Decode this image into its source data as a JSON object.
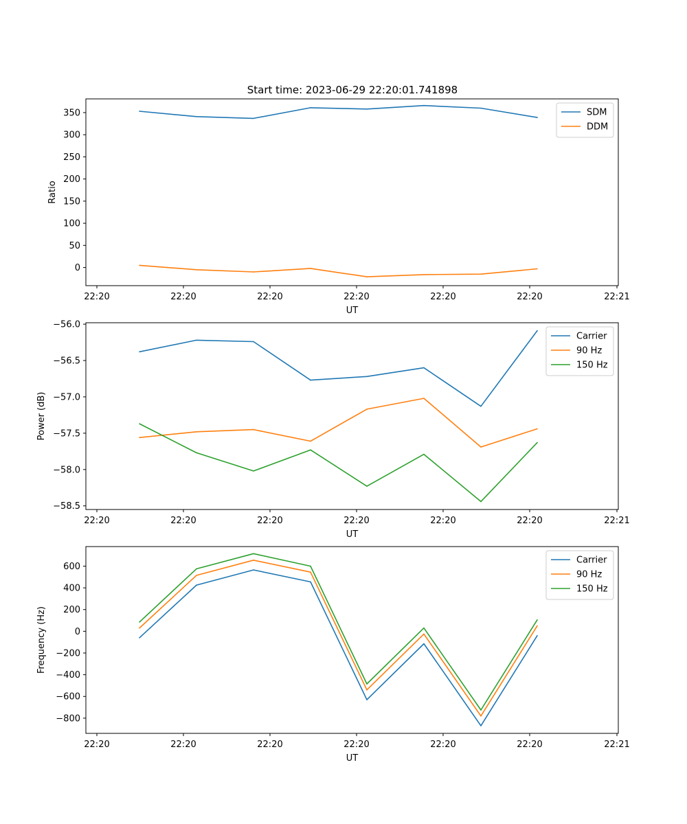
{
  "title": "Start time: 2023-06-29 22:20:01.741898",
  "chart_data": [
    {
      "type": "line",
      "xlabel": "UT",
      "ylabel": "Ratio",
      "x_tick_labels": [
        "22:20",
        "22:20",
        "22:20",
        "22:20",
        "22:20",
        "22:20",
        "22:21"
      ],
      "ylim": [
        -41,
        381
      ],
      "yticks": [
        0,
        50,
        100,
        150,
        200,
        250,
        300,
        350
      ],
      "legend_position": "upper right",
      "series": [
        {
          "name": "SDM",
          "color": "#1f77b4",
          "values": [
            353,
            341,
            337,
            361,
            358,
            366,
            360,
            339
          ]
        },
        {
          "name": "DDM",
          "color": "#ff7f0e",
          "values": [
            5,
            -5,
            -10,
            -2,
            -21,
            -16,
            -15,
            -3
          ]
        }
      ]
    },
    {
      "type": "line",
      "xlabel": "UT",
      "ylabel": "Power (dB)",
      "x_tick_labels": [
        "22:20",
        "22:20",
        "22:20",
        "22:20",
        "22:20",
        "22:20",
        "22:21"
      ],
      "ylim": [
        -58.55,
        -55.98
      ],
      "yticks": [
        -58.5,
        -58.0,
        -57.5,
        -57.0,
        -56.5,
        -56.0
      ],
      "legend_position": "upper right",
      "series": [
        {
          "name": "Carrier",
          "color": "#1f77b4",
          "values": [
            -56.38,
            -56.22,
            -56.24,
            -56.77,
            -56.72,
            -56.6,
            -57.13,
            -56.09
          ]
        },
        {
          "name": "90 Hz",
          "color": "#ff7f0e",
          "values": [
            -57.56,
            -57.48,
            -57.45,
            -57.61,
            -57.17,
            -57.02,
            -57.69,
            -57.44
          ]
        },
        {
          "name": "150 Hz",
          "color": "#2ca02c",
          "values": [
            -57.37,
            -57.77,
            -58.02,
            -57.73,
            -58.23,
            -57.79,
            -58.44,
            -57.63
          ]
        }
      ]
    },
    {
      "type": "line",
      "xlabel": "UT",
      "ylabel": "Frequency (Hz)",
      "x_tick_labels": [
        "22:20",
        "22:20",
        "22:20",
        "22:20",
        "22:20",
        "22:20",
        "22:21"
      ],
      "ylim": [
        -940,
        780
      ],
      "yticks": [
        -800,
        -600,
        -400,
        -200,
        0,
        200,
        400,
        600
      ],
      "legend_position": "upper right",
      "series": [
        {
          "name": "Carrier",
          "color": "#1f77b4",
          "values": [
            -60,
            425,
            565,
            455,
            -630,
            -115,
            -870,
            -40
          ]
        },
        {
          "name": "90 Hz",
          "color": "#ff7f0e",
          "values": [
            30,
            515,
            655,
            545,
            -540,
            -25,
            -780,
            50
          ]
        },
        {
          "name": "150 Hz",
          "color": "#2ca02c",
          "values": [
            85,
            575,
            715,
            600,
            -485,
            30,
            -725,
            105
          ]
        }
      ]
    }
  ]
}
